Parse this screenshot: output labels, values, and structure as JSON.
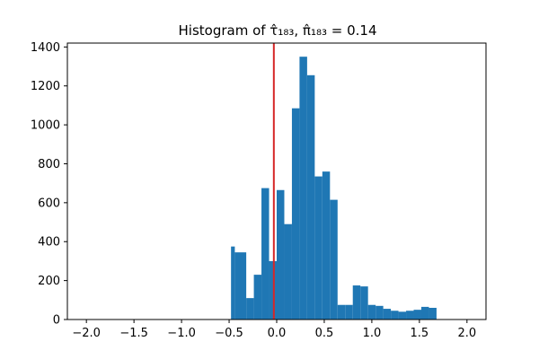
{
  "chart_data": {
    "type": "bar",
    "title": "Histogram of τ̂₁₈₃, π̂₁₈₃ = 0.14",
    "xlabel": "",
    "ylabel": "",
    "xlim": [
      -2.2,
      2.2
    ],
    "ylim": [
      0,
      1420
    ],
    "x_ticks": [
      -2.0,
      -1.5,
      -1.0,
      -0.5,
      0.0,
      0.5,
      1.0,
      1.5,
      2.0
    ],
    "x_tick_labels": [
      "−2.0",
      "−1.5",
      "−1.0",
      "−0.5",
      "0.0",
      "0.5",
      "1.0",
      "1.5",
      "2.0"
    ],
    "y_ticks": [
      0,
      200,
      400,
      600,
      800,
      1000,
      1200,
      1400
    ],
    "y_tick_labels": [
      "0",
      "200",
      "400",
      "600",
      "800",
      "1000",
      "1200",
      "1400"
    ],
    "grid": false,
    "bar_color": "#1f77b4",
    "bins": [
      {
        "x0": -0.48,
        "x1": -0.44,
        "count": 375
      },
      {
        "x0": -0.44,
        "x1": -0.32,
        "count": 345
      },
      {
        "x0": -0.32,
        "x1": -0.24,
        "count": 110
      },
      {
        "x0": -0.24,
        "x1": -0.16,
        "count": 230
      },
      {
        "x0": -0.16,
        "x1": -0.08,
        "count": 675
      },
      {
        "x0": -0.08,
        "x1": 0.0,
        "count": 300
      },
      {
        "x0": 0.0,
        "x1": 0.08,
        "count": 665
      },
      {
        "x0": 0.08,
        "x1": 0.16,
        "count": 490
      },
      {
        "x0": 0.16,
        "x1": 0.24,
        "count": 1085
      },
      {
        "x0": 0.24,
        "x1": 0.32,
        "count": 1350
      },
      {
        "x0": 0.32,
        "x1": 0.4,
        "count": 1255
      },
      {
        "x0": 0.4,
        "x1": 0.48,
        "count": 735
      },
      {
        "x0": 0.48,
        "x1": 0.56,
        "count": 760
      },
      {
        "x0": 0.56,
        "x1": 0.64,
        "count": 615
      },
      {
        "x0": 0.64,
        "x1": 0.72,
        "count": 75
      },
      {
        "x0": 0.72,
        "x1": 0.8,
        "count": 75
      },
      {
        "x0": 0.8,
        "x1": 0.88,
        "count": 175
      },
      {
        "x0": 0.88,
        "x1": 0.96,
        "count": 170
      },
      {
        "x0": 0.96,
        "x1": 1.04,
        "count": 75
      },
      {
        "x0": 1.04,
        "x1": 1.12,
        "count": 70
      },
      {
        "x0": 1.12,
        "x1": 1.2,
        "count": 55
      },
      {
        "x0": 1.2,
        "x1": 1.28,
        "count": 45
      },
      {
        "x0": 1.28,
        "x1": 1.36,
        "count": 40
      },
      {
        "x0": 1.36,
        "x1": 1.44,
        "count": 45
      },
      {
        "x0": 1.44,
        "x1": 1.52,
        "count": 50
      },
      {
        "x0": 1.52,
        "x1": 1.6,
        "count": 65
      },
      {
        "x0": 1.6,
        "x1": 1.68,
        "count": 60
      }
    ],
    "vline": {
      "x": -0.03,
      "color": "#d62728"
    }
  }
}
